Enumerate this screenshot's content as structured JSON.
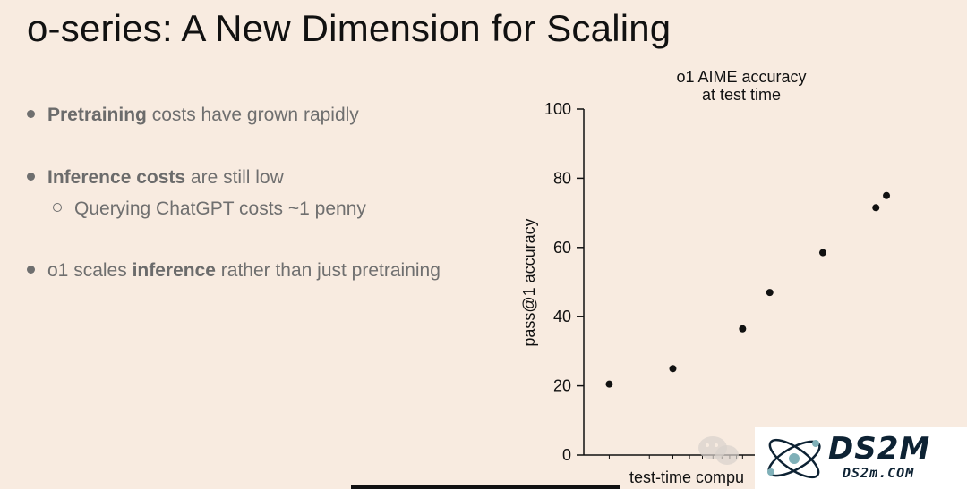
{
  "slide": {
    "title": "o-series: A New Dimension for Scaling"
  },
  "bullets": [
    {
      "bold": "Pretraining",
      "rest": " costs have grown rapidly"
    },
    {
      "bold": "Inference costs",
      "rest": " are still low"
    },
    {
      "pre": "o1 scales ",
      "bold": "inference",
      "rest": " rather than just pretraining"
    }
  ],
  "sub_bullets": [
    {
      "text": "Querying ChatGPT costs ~1 penny"
    }
  ],
  "colors": {
    "background": "#f8ebe0",
    "text_primary": "#111111",
    "text_bullets": "#6f6f6f",
    "points": "#111111"
  },
  "chart_data": {
    "type": "scatter",
    "title_lines": [
      "o1 AIME accuracy",
      "at test time"
    ],
    "xlabel": "test-time compu",
    "ylabel": "pass@1 accuracy",
    "ylim": [
      0,
      100
    ],
    "yticks": [
      0,
      20,
      40,
      60,
      80,
      100
    ],
    "x_log_scale": true,
    "grid": false,
    "points": [
      {
        "x": 1,
        "y": 20.5
      },
      {
        "x": 3,
        "y": 25
      },
      {
        "x": 10,
        "y": 36.5
      },
      {
        "x": 16,
        "y": 47
      },
      {
        "x": 40,
        "y": 58.5
      },
      {
        "x": 100,
        "y": 71.5
      },
      {
        "x": 120,
        "y": 75
      }
    ],
    "xlim": [
      0.8,
      140
    ]
  },
  "watermark": {
    "brand": "DS2M",
    "sub": "DS2m.COM"
  }
}
